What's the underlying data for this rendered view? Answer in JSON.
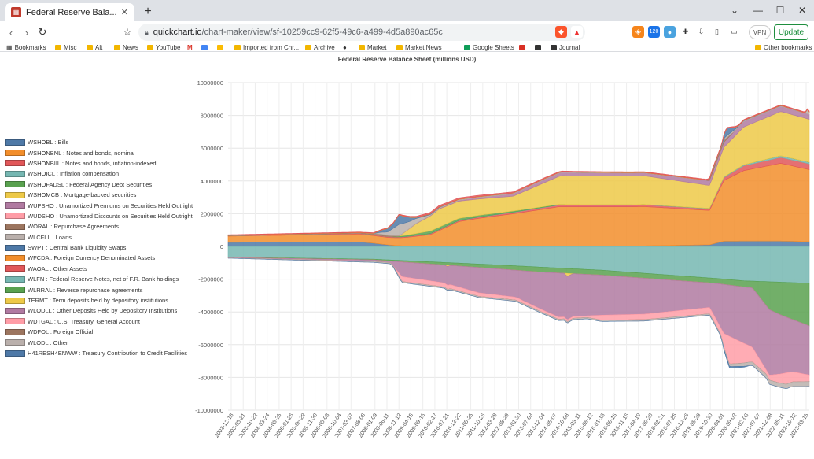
{
  "browser": {
    "tab_title": "Federal Reserve Bala...",
    "tab_close": "✕",
    "new_tab": "+",
    "url_host": "quickchart.io",
    "url_path": "/chart-maker/view/sf-10259cc9-62f5-49c6-a499-4d5a890ac65c",
    "vpn_label": "VPN",
    "update_label": "Update",
    "ext_badge": "120"
  },
  "bookmarks": [
    {
      "label": "Bookmarks"
    },
    {
      "label": "Misc"
    },
    {
      "label": "Alt"
    },
    {
      "label": "News"
    },
    {
      "label": "YouTube"
    },
    {
      "label": "M"
    },
    {
      "label": "Imported from Chr..."
    },
    {
      "label": "Archive"
    },
    {
      "label": "Market"
    },
    {
      "label": "Market News"
    },
    {
      "label": "Google Sheets"
    },
    {
      "label": "Journal"
    },
    {
      "label": "Other bookmarks"
    }
  ],
  "chart_data": {
    "type": "area",
    "title": "Federal Reserve Balance Sheet (millions USD)",
    "stacked": true,
    "legend_position": "left",
    "grid": true,
    "ylim": [
      -10000000,
      10000000
    ],
    "yticks": [
      10000000,
      8000000,
      6000000,
      4000000,
      2000000,
      0,
      -2000000,
      -4000000,
      -6000000,
      -8000000,
      -10000000
    ],
    "xticks": [
      "2002-12-18",
      "2003-05-21",
      "2003-10-22",
      "2004-03-24",
      "2004-08-25",
      "2005-01-26",
      "2005-06-29",
      "2005-11-30",
      "2006-05-03",
      "2006-10-04",
      "2007-03-07",
      "2007-08-08",
      "2008-01-09",
      "2008-06-11",
      "2008-11-12",
      "2009-04-15",
      "2009-09-16",
      "2010-02-17",
      "2010-07-21",
      "2010-12-22",
      "2011-05-25",
      "2011-10-26",
      "2012-03-28",
      "2012-08-29",
      "2013-01-30",
      "2013-07-03",
      "2013-12-04",
      "2014-05-07",
      "2014-10-08",
      "2015-03-11",
      "2015-08-12",
      "2016-01-13",
      "2016-06-15",
      "2016-11-16",
      "2017-04-19",
      "2017-09-20",
      "2018-02-21",
      "2018-07-25",
      "2018-12-26",
      "2019-05-29",
      "2019-10-30",
      "2020-04-01",
      "2020-09-02",
      "2021-02-03",
      "2021-07-07",
      "2021-12-08",
      "2022-05-11",
      "2022-10-12",
      "2023-03-15"
    ],
    "series": [
      {
        "name": "WSHOBL : Bills",
        "color": "#4e79a7",
        "sign": 1,
        "x": [
          2002.9,
          2007.5,
          2008.0,
          2008.5,
          2008.8,
          2009.2,
          2011.0,
          2017.0,
          2019.8,
          2020.3,
          2021.0,
          2022.3,
          2023.3
        ],
        "values": [
          250000,
          275000,
          200000,
          100000,
          50000,
          20000,
          18000,
          18000,
          100000,
          320000,
          326000,
          326000,
          290000
        ]
      },
      {
        "name": "WSHONBNL : Notes and bonds, nominal",
        "color": "#f28e2b",
        "sign": 1,
        "x": [
          2002.9,
          2007.5,
          2008.5,
          2009.0,
          2010.0,
          2011.0,
          2011.7,
          2013.0,
          2014.5,
          2017.5,
          2019.8,
          2020.3,
          2021.0,
          2022.3,
          2023.3
        ],
        "values": [
          380000,
          480000,
          450000,
          500000,
          700000,
          1500000,
          1700000,
          2000000,
          2400000,
          2400000,
          2100000,
          3700000,
          4300000,
          4750000,
          4400000
        ]
      },
      {
        "name": "WSHONBIIL : Notes and bonds, inflation-indexed",
        "color": "#e15759",
        "sign": 1,
        "x": [
          2002.9,
          2008.0,
          2011.0,
          2014.0,
          2017.5,
          2019.8,
          2021.0,
          2022.3,
          2023.3
        ],
        "values": [
          10000,
          40000,
          60000,
          100000,
          110000,
          100000,
          300000,
          360000,
          350000
        ]
      },
      {
        "name": "WSHOICL : Inflation compensation",
        "color": "#76b7b2",
        "sign": 1,
        "x": [
          2002.9,
          2008.0,
          2011.0,
          2014.0,
          2017.5,
          2019.8,
          2021.0,
          2022.3,
          2023.3
        ],
        "values": [
          1000,
          5000,
          12000,
          15000,
          20000,
          20000,
          60000,
          100000,
          100000
        ]
      },
      {
        "name": "WSHOFADSL : Federal Agency Debt Securities",
        "color": "#59a14f",
        "sign": 1,
        "x": [
          2002.9,
          2008.5,
          2009.0,
          2010.0,
          2011.5,
          2014.0,
          2016.0,
          2018.0,
          2023.3
        ],
        "values": [
          0,
          0,
          60000,
          160000,
          110000,
          40000,
          10000,
          2400,
          2400
        ]
      },
      {
        "name": "WSHOMCB : Mortgage-backed securities",
        "color": "#edc948",
        "sign": 1,
        "x": [
          2002.9,
          2008.9,
          2009.5,
          2010.3,
          2012.9,
          2014.6,
          2017.5,
          2019.8,
          2020.3,
          2021.0,
          2022.3,
          2023.3
        ],
        "values": [
          0,
          0,
          600000,
          1100000,
          900000,
          1750000,
          1750000,
          1400000,
          1800000,
          2300000,
          2700000,
          2620000
        ]
      },
      {
        "name": "WUPSHO : Unamortized Premiums on Securities Held Outright",
        "color": "#b07aa1",
        "sign": 1,
        "x": [
          2002.9,
          2008.9,
          2011.0,
          2014.0,
          2017.5,
          2020.0,
          2021.0,
          2022.3,
          2023.3
        ],
        "values": [
          0,
          5000,
          60000,
          200000,
          170000,
          300000,
          340000,
          330000,
          300000
        ]
      },
      {
        "name": "WUDSHO : Unamortized Discounts on Securities Held Outright",
        "color": "#ff9da7",
        "sign": 1,
        "x": [
          2002.9,
          2023.3
        ],
        "values": [
          0,
          0
        ]
      },
      {
        "name": "WORAL : Repurchase Agreements",
        "color": "#9c755f",
        "sign": 1,
        "x": [
          2002.9,
          2007.5,
          2008.3,
          2009.0,
          2019.7,
          2019.9,
          2020.3,
          2020.7,
          2023.3
        ],
        "values": [
          30000,
          30000,
          100000,
          0,
          0,
          200000,
          150000,
          0,
          0
        ]
      },
      {
        "name": "WLCFLL : Loans",
        "color": "#bab0ac",
        "sign": 1,
        "x": [
          2002.9,
          2008.0,
          2008.5,
          2008.9,
          2009.3,
          2010.0,
          2020.2,
          2020.4,
          2020.8,
          2023.15,
          2023.25,
          2023.3
        ],
        "values": [
          0,
          5000,
          200000,
          700000,
          400000,
          50000,
          10000,
          120000,
          50000,
          10000,
          300000,
          150000
        ]
      },
      {
        "name": "SWPT : Central Bank Liquidity Swaps",
        "color": "#4e79a7",
        "sign": 1,
        "x": [
          2002.9,
          2008.0,
          2008.7,
          2008.9,
          2009.5,
          2011.0,
          2020.2,
          2020.4,
          2020.8,
          2023.3
        ],
        "values": [
          0,
          0,
          300000,
          580000,
          50000,
          0,
          0,
          440000,
          20000,
          0
        ]
      },
      {
        "name": "WFCDA : Foreign Currency Denominated Assets",
        "color": "#f28e2b",
        "sign": 1,
        "x": [
          2002.9,
          2023.3
        ],
        "values": [
          20000,
          18000
        ]
      },
      {
        "name": "WAOAL : Other Assets",
        "color": "#e15759",
        "sign": 1,
        "x": [
          2002.9,
          2008.9,
          2010.0,
          2015.0,
          2020.0,
          2023.3
        ],
        "values": [
          20000,
          30000,
          90000,
          40000,
          40000,
          40000
        ]
      },
      {
        "name": "WLFN : Federal Reserve Notes, net of F.R. Bank holdings",
        "color": "#76b7b2",
        "sign": -1,
        "x": [
          2002.9,
          2008.0,
          2012.0,
          2016.0,
          2020.0,
          2021.0,
          2023.3
        ],
        "values": [
          650000,
          780000,
          1100000,
          1450000,
          1950000,
          2100000,
          2250000
        ]
      },
      {
        "name": "WLRRAL : Reverse repurchase agreements",
        "color": "#59a14f",
        "sign": -1,
        "x": [
          2002.9,
          2008.0,
          2013.8,
          2015.0,
          2018.0,
          2020.0,
          2021.3,
          2021.9,
          2022.3,
          2023.3
        ],
        "values": [
          20000,
          40000,
          300000,
          300000,
          300000,
          300000,
          400000,
          1700000,
          2000000,
          2600000
        ]
      },
      {
        "name": "TERMT : Term deposits held by depository institutions",
        "color": "#edc948",
        "sign": -1,
        "x": [
          2002.9,
          2010.5,
          2010.6,
          2010.7,
          2014.7,
          2014.8,
          2015.0,
          2023.3
        ],
        "values": [
          0,
          0,
          100000,
          0,
          0,
          200000,
          0,
          0
        ]
      },
      {
        "name": "WLODLL : Other Deposits Held by Depository Institutions",
        "color": "#b07aa1",
        "sign": -1,
        "x": [
          2002.9,
          2008.6,
          2009.0,
          2010.5,
          2011.7,
          2013.0,
          2014.5,
          2017.5,
          2019.8,
          2020.3,
          2021.9,
          2022.7,
          2023.3
        ],
        "values": [
          20000,
          100000,
          900000,
          1100000,
          1550000,
          1650000,
          2700000,
          2200000,
          1500000,
          3000000,
          4000000,
          3200000,
          3000000
        ]
      },
      {
        "name": "WDTGAL : U.S. Treasury, General Account",
        "color": "#ff9da7",
        "sign": -1,
        "x": [
          2002.9,
          2008.7,
          2009.0,
          2015.5,
          2016.0,
          2020.2,
          2020.5,
          2021.3,
          2021.8,
          2022.5,
          2023.3
        ],
        "values": [
          5000,
          5000,
          300000,
          100000,
          300000,
          400000,
          1700000,
          900000,
          250000,
          700000,
          400000
        ]
      },
      {
        "name": "WDFOL : Foreign Official",
        "color": "#9c755f",
        "sign": -1,
        "x": [
          2002.9,
          2023.3
        ],
        "values": [
          2000,
          5000
        ]
      },
      {
        "name": "WLODL : Other",
        "color": "#bab0ac",
        "sign": -1,
        "x": [
          2002.9,
          2008.9,
          2012.0,
          2016.0,
          2020.0,
          2021.0,
          2022.0,
          2023.3
        ],
        "values": [
          20000,
          60000,
          70000,
          80000,
          80000,
          200000,
          250000,
          300000
        ]
      },
      {
        "name": "H41RESH4ENWW : Treasury Contribution to Credit Facilities",
        "color": "#4e79a7",
        "sign": -1,
        "x": [
          2002.9,
          2020.2,
          2020.4,
          2021.0,
          2021.2,
          2023.3
        ],
        "values": [
          0,
          0,
          100000,
          60000,
          0,
          0
        ]
      }
    ]
  }
}
